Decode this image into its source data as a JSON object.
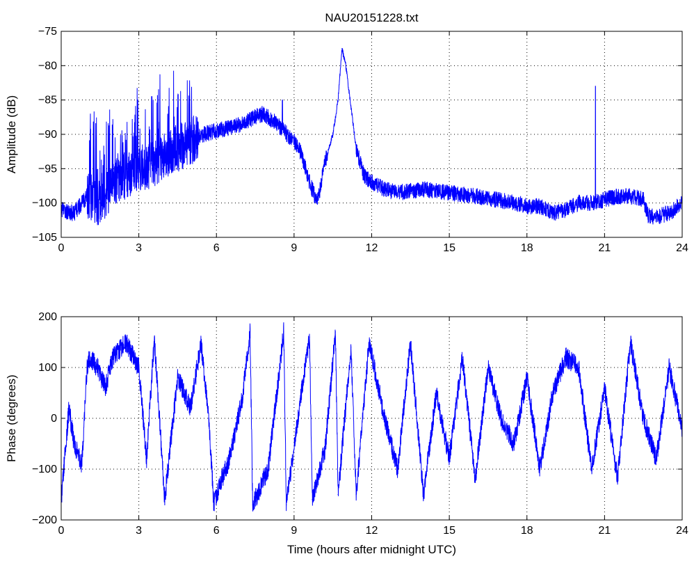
{
  "chart_data": [
    {
      "type": "line",
      "title": "NAU20151228.txt",
      "xlabel": "",
      "ylabel": "Amplitude (dB)",
      "xlim": [
        0,
        24
      ],
      "ylim": [
        -105,
        -75
      ],
      "xticks": [
        0,
        3,
        6,
        9,
        12,
        15,
        18,
        21,
        24
      ],
      "yticks": [
        -75,
        -80,
        -85,
        -90,
        -95,
        -100,
        -105
      ],
      "grid": true,
      "color": "#0000ff",
      "series": [
        {
          "x": [
            0,
            0.5,
            1,
            1.5,
            2,
            2.5,
            3,
            3.5,
            4,
            4.5,
            5,
            5.5,
            6,
            6.5,
            7,
            7.5,
            7.8,
            8.2,
            8.6,
            9,
            9.3,
            9.6,
            9.9,
            10.2,
            10.5,
            10.7,
            10.85,
            11,
            11.2,
            11.4,
            11.7,
            12,
            12.5,
            13,
            14,
            15,
            16,
            16.8,
            17.5,
            18,
            18.5,
            19,
            19.5,
            20,
            20.5,
            21,
            21.5,
            22,
            22.5,
            22.7,
            23,
            23.5,
            24
          ],
          "y": [
            -101,
            -101.5,
            -99,
            -100,
            -97,
            -96,
            -95,
            -94.5,
            -93,
            -92,
            -91,
            -90,
            -89.5,
            -89,
            -88.5,
            -87.5,
            -87,
            -88,
            -89.5,
            -91,
            -93,
            -97,
            -100,
            -94,
            -90,
            -85,
            -77.5,
            -80,
            -86,
            -92,
            -96,
            -97,
            -98,
            -98.5,
            -98,
            -98.5,
            -99,
            -99.5,
            -100,
            -100.5,
            -100.5,
            -101.5,
            -101,
            -100,
            -100,
            -99.5,
            -99,
            -99,
            -99.5,
            -102,
            -102,
            -101.5,
            -100
          ]
        }
      ]
    },
    {
      "type": "line",
      "title": "",
      "xlabel": "Time (hours after midnight UTC)",
      "ylabel": "Phase (degrees)",
      "xlim": [
        0,
        24
      ],
      "ylim": [
        -200,
        200
      ],
      "xticks": [
        0,
        3,
        6,
        9,
        12,
        15,
        18,
        21,
        24
      ],
      "yticks": [
        200,
        100,
        0,
        -100,
        -200
      ],
      "grid": true,
      "color": "#0000ff",
      "series": [
        {
          "x": [
            0,
            0.1,
            0.3,
            0.5,
            0.8,
            1,
            1.1,
            1.4,
            1.7,
            2,
            2.5,
            3,
            3.3,
            3.6,
            4,
            4.5,
            5,
            5.4,
            5.7,
            5.9,
            6,
            6.5,
            7,
            7.3,
            7.4,
            8,
            8.6,
            8.7,
            9.2,
            9.6,
            9.7,
            10.2,
            10.6,
            10.7,
            11.2,
            11.4,
            11.9,
            12.5,
            13,
            13.5,
            14,
            14.5,
            15,
            15.5,
            16,
            16.5,
            17,
            17.5,
            18,
            18.5,
            19,
            19.5,
            20,
            20.5,
            21,
            21.5,
            22,
            22.5,
            23,
            23.5,
            24
          ],
          "y": [
            -160,
            -100,
            20,
            -50,
            -90,
            100,
            120,
            100,
            60,
            120,
            150,
            100,
            -80,
            160,
            -160,
            80,
            20,
            150,
            0,
            -170,
            -150,
            -80,
            40,
            170,
            -170,
            -100,
            170,
            -170,
            20,
            160,
            -160,
            -60,
            170,
            -150,
            140,
            -150,
            150,
            0,
            -100,
            150,
            -150,
            50,
            -80,
            120,
            -120,
            100,
            0,
            -50,
            80,
            -100,
            50,
            120,
            100,
            -100,
            60,
            -120,
            150,
            0,
            -80,
            100,
            -20
          ]
        }
      ]
    }
  ]
}
